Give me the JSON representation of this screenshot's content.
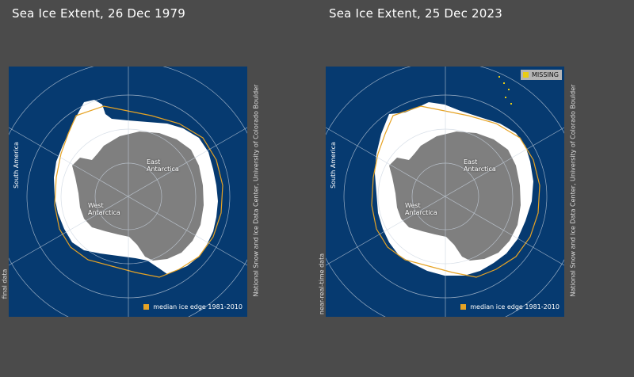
{
  "maps": [
    {
      "title": "Sea Ice Extent, 26 Dec 1979",
      "data_type_label": "final data",
      "legend_label": "median ice edge 1981-2010",
      "credit": "National Snow and Ice Data Center, University of Colorado Boulder",
      "label_south_america": "South America",
      "label_east": "East\nAntarctica",
      "label_west": "West\nAntarctica",
      "missing_label": ""
    },
    {
      "title": "Sea Ice Extent, 25 Dec 2023",
      "data_type_label": "near-real-time data",
      "legend_label": "median ice edge 1981-2010",
      "credit": "National Snow and Ice Data Center, University of Colorado Boulder",
      "label_south_america": "South America",
      "label_east": "East\nAntarctica",
      "label_west": "West\nAntarctica",
      "missing_label": "MISSING"
    }
  ],
  "colors": {
    "ocean": "#063a70",
    "sea_ice": "#ffffff",
    "land": "#7f7f7f",
    "median_edge": "#e6a324",
    "missing": "#e8cc14",
    "background": "#4b4b4b"
  }
}
